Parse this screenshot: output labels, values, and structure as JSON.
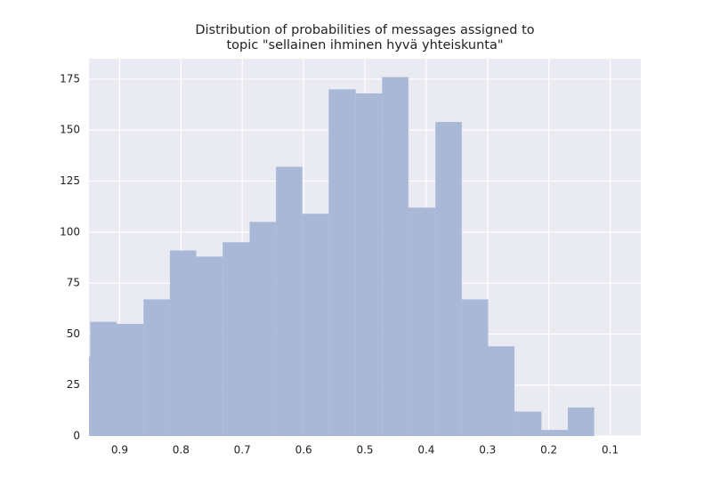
{
  "chart_data": {
    "type": "histogram",
    "title": "Distribution of probabilities of messages assigned to\ntopic \"sellainen ihminen hyvä yhteiskunta\"",
    "bins": [
      0.126,
      0.169,
      0.212,
      0.256,
      0.299,
      0.342,
      0.385,
      0.429,
      0.472,
      0.515,
      0.559,
      0.602,
      0.645,
      0.688,
      0.732,
      0.775,
      0.818,
      0.861,
      0.905,
      0.948,
      0.991
    ],
    "counts": [
      14,
      3,
      12,
      44,
      67,
      154,
      112,
      176,
      168,
      170,
      109,
      132,
      105,
      95,
      88,
      91,
      67,
      55,
      56,
      39
    ],
    "color": "#a9b8d7",
    "xlim": [
      0.95,
      0.05
    ],
    "xticks": [
      0.9,
      0.8,
      0.7,
      0.6,
      0.5,
      0.4,
      0.3,
      0.2,
      0.1
    ],
    "ylim": [
      0,
      185
    ],
    "yticks": [
      0,
      25,
      50,
      75,
      100,
      125,
      150,
      175
    ],
    "grid": true
  }
}
